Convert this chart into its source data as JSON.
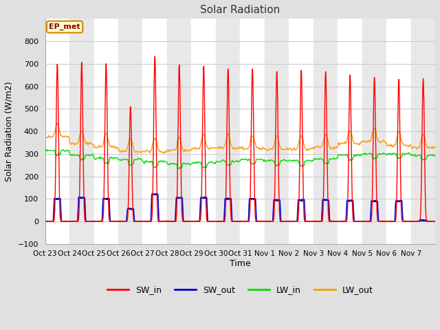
{
  "title": "Solar Radiation",
  "xlabel": "Time",
  "ylabel": "Solar Radiation (W/m2)",
  "ylim": [
    -100,
    900
  ],
  "yticks": [
    -100,
    0,
    100,
    200,
    300,
    400,
    500,
    600,
    700,
    800
  ],
  "xtick_labels": [
    "Oct 23",
    "Oct 24",
    "Oct 25",
    "Oct 26",
    "Oct 27",
    "Oct 28",
    "Oct 29",
    "Oct 30",
    "Oct 31",
    "Nov 1",
    "Nov 2",
    "Nov 3",
    "Nov 4",
    "Nov 5",
    "Nov 6",
    "Nov 7"
  ],
  "series_colors": {
    "SW_in": "#ff0000",
    "SW_out": "#0000cc",
    "LW_in": "#00dd00",
    "LW_out": "#ff9900"
  },
  "annotation_text": "EP_met",
  "annotation_bg": "#ffffcc",
  "annotation_border": "#cc8800",
  "bg_color": "#e0e0e0",
  "plot_bg_light": "#ffffff",
  "plot_bg_dark": "#e8e8e8",
  "grid_color": "#cccccc",
  "title_color": "#333333",
  "sw_in_peaks": [
    700,
    705,
    700,
    510,
    735,
    695,
    695,
    675,
    675,
    665,
    670,
    665,
    650,
    638,
    630,
    630
  ],
  "sw_out_peaks": [
    100,
    105,
    100,
    55,
    120,
    105,
    105,
    100,
    100,
    95,
    95,
    95,
    92,
    90,
    90,
    5
  ],
  "lw_in_base": [
    315,
    295,
    280,
    275,
    265,
    255,
    260,
    268,
    275,
    270,
    268,
    278,
    295,
    300,
    300,
    293
  ],
  "lw_out_base": [
    375,
    345,
    330,
    310,
    310,
    315,
    325,
    325,
    325,
    320,
    322,
    328,
    345,
    355,
    338,
    328
  ]
}
